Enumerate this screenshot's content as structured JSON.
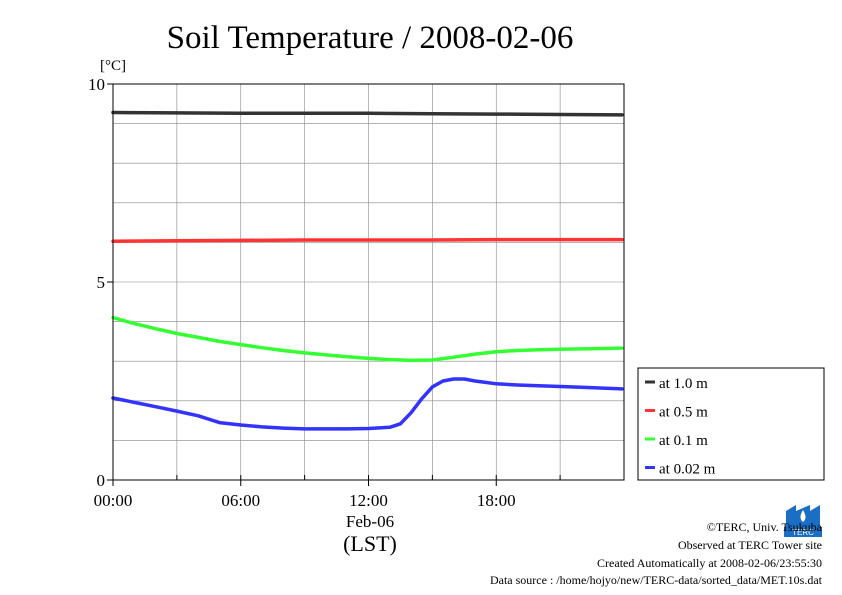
{
  "chart_data": {
    "type": "line",
    "title": "Soil Temperature / 2008-02-06",
    "ylabel": "[°C]",
    "xlabel": "(LST)",
    "date_label": "Feb-06",
    "ylim": [
      0,
      10
    ],
    "xlim_hours": [
      0,
      24
    ],
    "y_ticks": [
      {
        "value": 0,
        "label": "0"
      },
      {
        "value": 5,
        "label": "5"
      },
      {
        "value": 10,
        "label": "10"
      }
    ],
    "x_ticks": [
      {
        "value": 0,
        "label": "00:00"
      },
      {
        "value": 6,
        "label": "06:00"
      },
      {
        "value": 12,
        "label": "12:00"
      },
      {
        "value": 18,
        "label": "18:00"
      }
    ],
    "legend_position": "outside-right-bottom",
    "series": [
      {
        "name": "at 1.0 m",
        "color": "#333333",
        "points": [
          [
            0,
            9.28
          ],
          [
            3,
            9.27
          ],
          [
            6,
            9.26
          ],
          [
            9,
            9.26
          ],
          [
            12,
            9.26
          ],
          [
            15,
            9.25
          ],
          [
            18,
            9.24
          ],
          [
            21,
            9.23
          ],
          [
            23.9,
            9.22
          ]
        ]
      },
      {
        "name": "at 0.5 m",
        "color": "#ff3333",
        "points": [
          [
            0,
            6.03
          ],
          [
            3,
            6.04
          ],
          [
            6,
            6.05
          ],
          [
            9,
            6.06
          ],
          [
            12,
            6.06
          ],
          [
            15,
            6.06
          ],
          [
            18,
            6.07
          ],
          [
            21,
            6.07
          ],
          [
            23.9,
            6.07
          ]
        ]
      },
      {
        "name": "at 0.1 m",
        "color": "#33ff33",
        "points": [
          [
            0,
            4.1
          ],
          [
            1,
            3.95
          ],
          [
            2,
            3.82
          ],
          [
            3,
            3.7
          ],
          [
            4,
            3.6
          ],
          [
            5,
            3.5
          ],
          [
            6,
            3.42
          ],
          [
            7,
            3.34
          ],
          [
            8,
            3.27
          ],
          [
            9,
            3.21
          ],
          [
            10,
            3.16
          ],
          [
            11,
            3.11
          ],
          [
            12,
            3.07
          ],
          [
            13,
            3.04
          ],
          [
            14,
            3.02
          ],
          [
            15,
            3.03
          ],
          [
            16,
            3.1
          ],
          [
            17,
            3.18
          ],
          [
            18,
            3.24
          ],
          [
            19,
            3.27
          ],
          [
            20,
            3.29
          ],
          [
            21,
            3.3
          ],
          [
            22,
            3.31
          ],
          [
            23,
            3.32
          ],
          [
            23.9,
            3.33
          ]
        ]
      },
      {
        "name": "at 0.02 m",
        "color": "#3333ff",
        "points": [
          [
            0,
            2.07
          ],
          [
            1,
            1.96
          ],
          [
            2,
            1.85
          ],
          [
            3,
            1.74
          ],
          [
            4,
            1.62
          ],
          [
            5,
            1.45
          ],
          [
            6,
            1.39
          ],
          [
            7,
            1.34
          ],
          [
            8,
            1.31
          ],
          [
            9,
            1.29
          ],
          [
            10,
            1.29
          ],
          [
            11,
            1.29
          ],
          [
            12,
            1.3
          ],
          [
            13,
            1.33
          ],
          [
            13.5,
            1.42
          ],
          [
            14,
            1.7
          ],
          [
            14.5,
            2.05
          ],
          [
            15,
            2.35
          ],
          [
            15.5,
            2.5
          ],
          [
            16,
            2.55
          ],
          [
            16.5,
            2.55
          ],
          [
            17,
            2.5
          ],
          [
            18,
            2.43
          ],
          [
            19,
            2.4
          ],
          [
            20,
            2.38
          ],
          [
            21,
            2.36
          ],
          [
            22,
            2.34
          ],
          [
            23,
            2.32
          ],
          [
            23.9,
            2.3
          ]
        ]
      }
    ]
  },
  "footer": {
    "copyright": "©TERC, Univ. Tsukuba",
    "observed": "Observed at TERC Tower site",
    "created": "Created Automatically at 2008-02-06/23:55:30",
    "source": "Data source : /home/hojyo/new/TERC-data/sorted_data/MET.10s.dat",
    "logo_text": "TERC"
  },
  "colors": {
    "logo_blue": "#1a6fc4",
    "grid": "#888888"
  }
}
